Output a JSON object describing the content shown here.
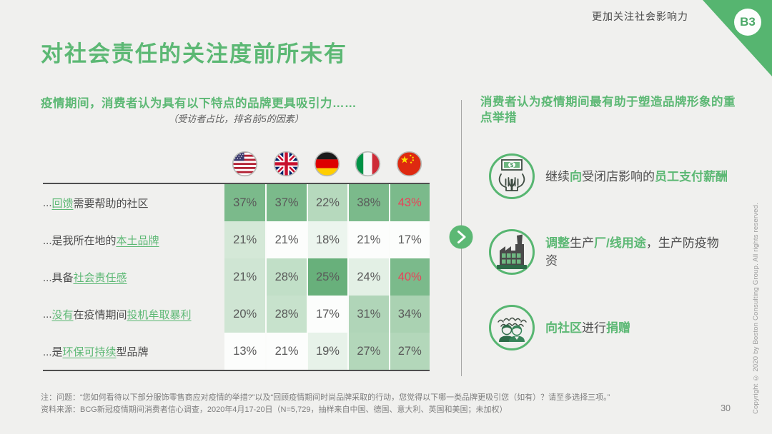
{
  "page": {
    "tag_label": "更加关注社会影响力",
    "corner_badge": "B3",
    "title": "对社会责任的关注度前所未有",
    "page_number": "30",
    "copyright_vertical": "Copyright © 2020 by Boston Consulting Group. All rights reserved."
  },
  "colors": {
    "brand_green": "#5cb874",
    "red_highlight": "#e8435a",
    "background": "#f0f0ee",
    "table_border": "#4f4f4f",
    "heat_dark": "#7bba8b",
    "heat_medium": "#b0d5b8",
    "heat_light": "#d4e8d7",
    "heat_white": "#fcfdfc"
  },
  "left_panel": {
    "heading": "疫情期间，消费者认为具有以下特点的品牌更具吸引力……",
    "subheading": "（受访者占比，排名前5的因素）",
    "flag_icons": [
      "usa-flag-icon",
      "uk-flag-icon",
      "germany-flag-icon",
      "italy-flag-icon",
      "china-flag-icon"
    ]
  },
  "table": {
    "rows": [
      {
        "label_segments": [
          {
            "text": "...",
            "green": false
          },
          {
            "text": "回馈",
            "green": true
          },
          {
            "text": "需要帮助的社区",
            "green": false
          }
        ],
        "values": [
          "37%",
          "37%",
          "22%",
          "38%",
          "43%"
        ],
        "cell_colors": [
          "#7bba8b",
          "#7bba8b",
          "#b6d9bd",
          "#7bba8b",
          "#7bba8b"
        ],
        "red_flags": [
          false,
          false,
          false,
          false,
          true
        ]
      },
      {
        "label_segments": [
          {
            "text": "...是我所在地的",
            "green": false
          },
          {
            "text": "本土品牌",
            "green": true
          }
        ],
        "values": [
          "21%",
          "21%",
          "18%",
          "21%",
          "17%"
        ],
        "cell_colors": [
          "#d4e8d7",
          "#fcfdfc",
          "#ecf5ee",
          "#fcfdfc",
          "#fcfdfc"
        ],
        "red_flags": [
          false,
          false,
          false,
          false,
          false
        ]
      },
      {
        "label_segments": [
          {
            "text": "...具备",
            "green": false
          },
          {
            "text": "社会责任感",
            "green": true
          }
        ],
        "values": [
          "21%",
          "28%",
          "25%",
          "24%",
          "40%"
        ],
        "cell_colors": [
          "#cfe5d3",
          "#c1dfc7",
          "#68b07b",
          "#e3f0e5",
          "#7bba8b"
        ],
        "red_flags": [
          false,
          false,
          false,
          false,
          true
        ]
      },
      {
        "label_segments": [
          {
            "text": "...",
            "green": false
          },
          {
            "text": "没有",
            "green": true
          },
          {
            "text": "在疫情期间",
            "green": false
          },
          {
            "text": "投机牟取暴利",
            "green": true
          }
        ],
        "values": [
          "20%",
          "28%",
          "17%",
          "31%",
          "34%"
        ],
        "cell_colors": [
          "#cfe5d3",
          "#c7e2cc",
          "#fcfdfc",
          "#b0d5b8",
          "#aad2b2"
        ],
        "red_flags": [
          false,
          false,
          false,
          false,
          false
        ]
      },
      {
        "label_segments": [
          {
            "text": "...是",
            "green": false
          },
          {
            "text": "环保可持续",
            "green": true
          },
          {
            "text": "型品牌",
            "green": false
          }
        ],
        "values": [
          "13%",
          "21%",
          "19%",
          "27%",
          "27%"
        ],
        "cell_colors": [
          "#fcfdfc",
          "#fcfdfc",
          "#e7f2e9",
          "#b3d7ba",
          "#b3d7ba"
        ],
        "red_flags": [
          false,
          false,
          false,
          false,
          false
        ]
      }
    ]
  },
  "chart_data": {
    "type": "heatmap",
    "title": "疫情期间，消费者认为具有以下特点的品牌更具吸引力……",
    "subtitle": "（受访者占比，排名前5的因素）",
    "columns": [
      "美国",
      "英国",
      "德国",
      "意大利",
      "中国"
    ],
    "rows": [
      "...回馈需要帮助的社区",
      "...是我所在地的本土品牌",
      "...具备社会责任感",
      "...没有在疫情期间投机牟取暴利",
      "...是环保可持续型品牌"
    ],
    "values_pct": [
      [
        37,
        37,
        22,
        38,
        43
      ],
      [
        21,
        21,
        18,
        21,
        17
      ],
      [
        21,
        28,
        25,
        24,
        40
      ],
      [
        20,
        28,
        17,
        31,
        34
      ],
      [
        13,
        21,
        19,
        27,
        27
      ]
    ],
    "red_highlighted_cells": [
      [
        0,
        4
      ],
      [
        2,
        4
      ]
    ],
    "legend_position": "none",
    "grid": false
  },
  "right_panel": {
    "heading": "消费者认为疫情期间最有助于塑造品牌形象的重点举措",
    "items": [
      {
        "icon": "hands-money-icon",
        "segments": [
          {
            "text": "继续",
            "green": false
          },
          {
            "text": "向",
            "green": true
          },
          {
            "text": "受闭店影响的",
            "green": false
          },
          {
            "text": "员工支付薪酬",
            "green": true
          }
        ]
      },
      {
        "icon": "factory-icon",
        "segments": [
          {
            "text": "调整",
            "green": true
          },
          {
            "text": "生产",
            "green": false
          },
          {
            "text": "厂/线用途",
            "green": true
          },
          {
            "text": "，生产防疫物资",
            "green": false
          }
        ]
      },
      {
        "icon": "community-donation-icon",
        "segments": [
          {
            "text": "向社区",
            "green": true
          },
          {
            "text": "进行",
            "green": false
          },
          {
            "text": "捐赠",
            "green": true
          }
        ]
      }
    ]
  },
  "footer": {
    "note": "注：问题：“您如何看待以下部分服饰零售商应对疫情的举措?”以及“回顾疫情期间时尚品牌采取的行动，您觉得以下哪一类品牌更吸引您（如有）？请至多选择三项。”",
    "source": "资料来源：BCG新冠疫情期间消费者信心调查，2020年4月17-20日（N=5,729，抽样来自中国、德国、意大利、英国和美国；未加权）"
  }
}
